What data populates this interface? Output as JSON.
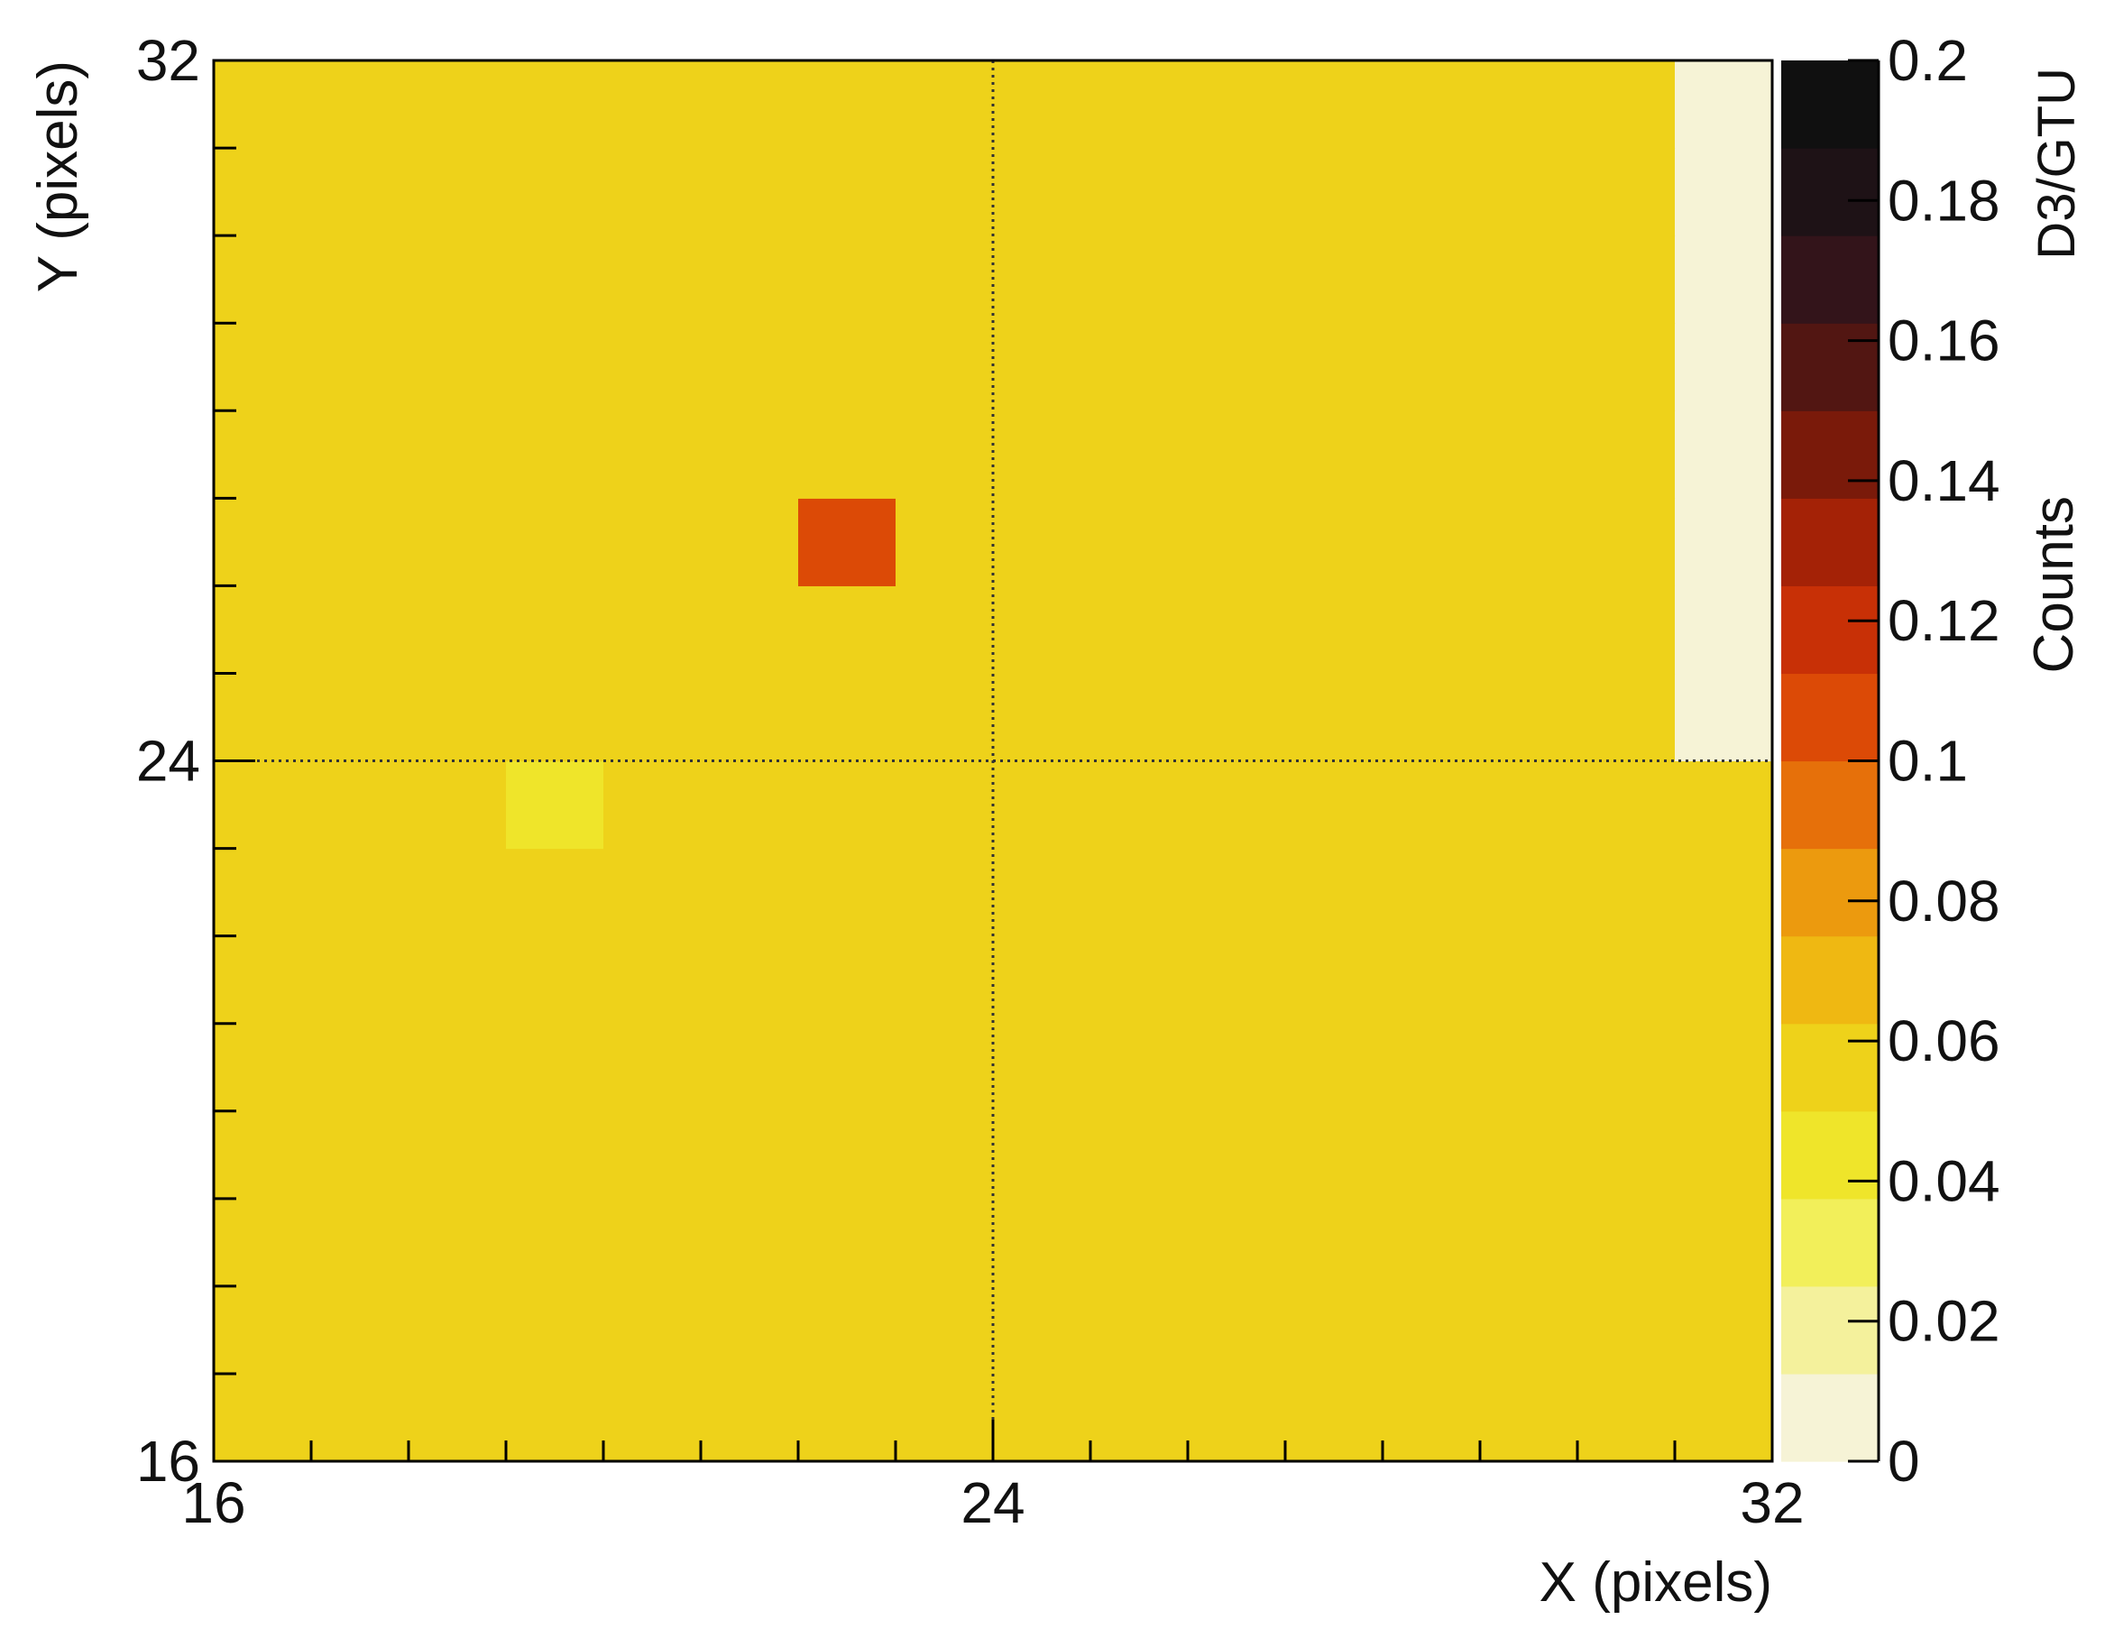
{
  "chart_data": {
    "type": "heatmap",
    "xlabel": "X (pixels)",
    "ylabel": "Y (pixels)",
    "zlabel": "Counts",
    "zunit": "D3/GTU",
    "xlim": [
      16,
      32
    ],
    "ylim": [
      16,
      32
    ],
    "zlim": [
      0,
      0.2
    ],
    "x_ticks": [
      "16",
      "24",
      "32"
    ],
    "y_ticks": [
      "16",
      "24",
      "32"
    ],
    "z_ticks": [
      "0",
      "0.02",
      "0.04",
      "0.06",
      "0.08",
      "0.1",
      "0.12",
      "0.14",
      "0.16",
      "0.18",
      "0.2"
    ],
    "grid": "dotted lines at x=24 and y=24",
    "colormap": [
      "#f6f3d6",
      "#f4f19c",
      "#f2ef5a",
      "#efe52a",
      "#eed21a",
      "#efb812",
      "#ec9a0e",
      "#e6700a",
      "#dc4a06",
      "#c83006",
      "#a42206",
      "#7a1a0a",
      "#521612",
      "#33141a",
      "#1e1216",
      "#101010"
    ],
    "row_y_start": 16,
    "values_rows_from_bottom": [
      [
        0.056,
        0.056,
        0.056,
        0.056,
        0.061,
        0.061,
        0.056,
        0.056,
        0.061,
        0.061,
        0.056,
        0.056,
        0.056,
        0.056,
        0.061,
        0.056
      ],
      [
        0.061,
        0.056,
        0.056,
        0.056,
        0.061,
        0.056,
        0.061,
        0.056,
        0.056,
        0.056,
        0.061,
        0.061,
        0.061,
        0.056,
        0.061,
        0.056
      ],
      [
        0.061,
        0.061,
        0.056,
        0.056,
        0.056,
        0.061,
        0.056,
        0.056,
        0.061,
        0.061,
        0.056,
        0.061,
        0.061,
        0.056,
        0.056,
        0.056
      ],
      [
        0.061,
        0.061,
        0.061,
        0.061,
        0.056,
        0.061,
        0.056,
        0.056,
        0.061,
        0.061,
        0.056,
        0.056,
        0.061,
        0.061,
        0.061,
        0.056
      ],
      [
        0.056,
        0.056,
        0.056,
        0.056,
        0.056,
        0.061,
        0.056,
        0.056,
        0.061,
        0.056,
        0.061,
        0.056,
        0.061,
        0.061,
        0.056,
        0.061
      ],
      [
        0.056,
        0.061,
        0.056,
        0.061,
        0.056,
        0.056,
        0.056,
        0.056,
        0.056,
        0.056,
        0.056,
        0.056,
        0.056,
        0.056,
        0.056,
        0.056
      ],
      [
        0.061,
        0.056,
        0.061,
        0.056,
        0.061,
        0.056,
        0.061,
        0.061,
        0.056,
        0.061,
        0.056,
        0.056,
        0.061,
        0.056,
        0.056,
        0.056
      ],
      [
        0.061,
        0.061,
        0.061,
        0.045,
        0.056,
        0.061,
        0.056,
        0.056,
        0.056,
        0.056,
        0.056,
        0.056,
        0.056,
        0.056,
        0.061,
        0.061
      ],
      [
        0.061,
        0.061,
        0.056,
        0.061,
        0.061,
        0.061,
        0.056,
        0.061,
        0.056,
        0.061,
        0.061,
        0.061,
        0.056,
        0.056,
        0.061,
        0.003
      ],
      [
        0.061,
        0.061,
        0.061,
        0.061,
        0.061,
        0.061,
        0.056,
        0.056,
        0.061,
        0.056,
        0.061,
        0.056,
        0.056,
        0.056,
        0.056,
        0.003
      ],
      [
        0.056,
        0.056,
        0.056,
        0.056,
        0.056,
        0.056,
        0.102,
        0.061,
        0.056,
        0.061,
        0.061,
        0.061,
        0.061,
        0.056,
        0.056,
        0.003
      ],
      [
        0.061,
        0.056,
        0.056,
        0.056,
        0.061,
        0.056,
        0.056,
        0.056,
        0.056,
        0.061,
        0.056,
        0.061,
        0.061,
        0.056,
        0.056,
        0.003
      ],
      [
        0.061,
        0.061,
        0.061,
        0.061,
        0.056,
        0.061,
        0.061,
        0.056,
        0.056,
        0.056,
        0.056,
        0.056,
        0.061,
        0.056,
        0.061,
        0.003
      ],
      [
        0.056,
        0.061,
        0.061,
        0.056,
        0.056,
        0.056,
        0.056,
        0.061,
        0.061,
        0.056,
        0.056,
        0.056,
        0.061,
        0.056,
        0.061,
        0.003
      ],
      [
        0.061,
        0.061,
        0.056,
        0.061,
        0.061,
        0.056,
        0.056,
        0.061,
        0.061,
        0.061,
        0.056,
        0.056,
        0.056,
        0.056,
        0.056,
        0.003
      ],
      [
        0.061,
        0.061,
        0.061,
        0.061,
        0.056,
        0.056,
        0.056,
        0.061,
        0.061,
        0.061,
        0.061,
        0.061,
        0.056,
        0.056,
        0.056,
        0.003
      ]
    ]
  }
}
